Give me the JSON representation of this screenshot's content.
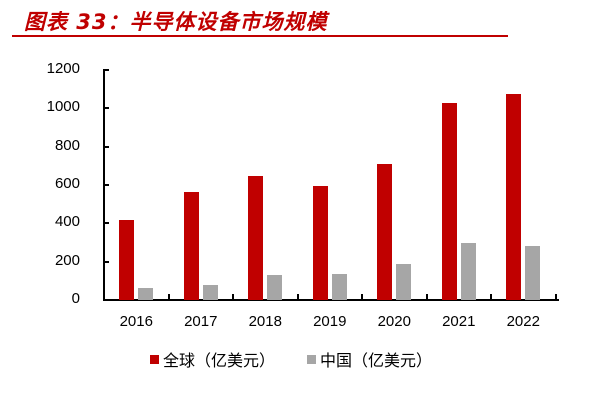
{
  "header": {
    "title": "图表 33：半导体设备市场规模"
  },
  "colors": {
    "global": "#c00000",
    "china": "#a6a6a6",
    "title": "#c00000"
  },
  "chart_data": {
    "type": "bar",
    "title": "图表 33：半导体设备市场规模",
    "xlabel": "",
    "ylabel": "",
    "categories": [
      "2016",
      "2017",
      "2018",
      "2019",
      "2020",
      "2021",
      "2022"
    ],
    "series": [
      {
        "name": "全球（亿美元）",
        "values": [
          417,
          564,
          647,
          596,
          712,
          1026,
          1076
        ]
      },
      {
        "name": "中国（亿美元）",
        "values": [
          63,
          79,
          131,
          134,
          187,
          296,
          283
        ]
      }
    ],
    "ylim": [
      0,
      1200
    ],
    "yticks": [
      0,
      200,
      400,
      600,
      800,
      1000,
      1200
    ],
    "grid": false,
    "legend_position": "bottom"
  },
  "legend": {
    "items": [
      {
        "label": "全球（亿美元）"
      },
      {
        "label": "中国（亿美元）"
      }
    ]
  },
  "yaxis": {
    "ticks": [
      "0",
      "200",
      "400",
      "600",
      "800",
      "1000",
      "1200"
    ]
  }
}
